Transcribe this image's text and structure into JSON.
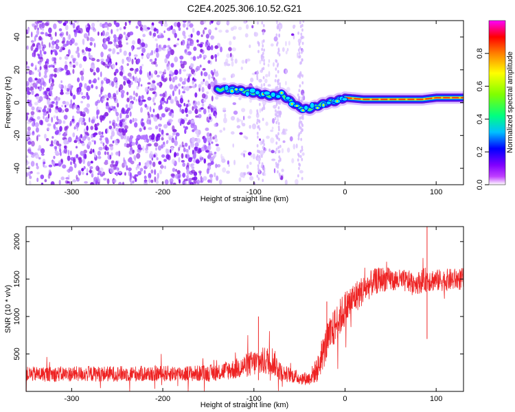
{
  "title": "C2E4.2025.306.10.52.G21",
  "chart_data": [
    {
      "type": "heatmap",
      "xlabel": "Height of straight line (km)",
      "ylabel": "Frequency (Hz)",
      "xlim": [
        -350,
        130
      ],
      "ylim": [
        -50,
        50
      ],
      "x_ticks": [
        -300,
        -200,
        -100,
        0,
        100
      ],
      "x_tick_labels": [
        "-300",
        "-200",
        "-100",
        "0",
        "100"
      ],
      "y_ticks": [
        -40,
        -20,
        0,
        20,
        40
      ],
      "y_tick_labels": [
        "-40",
        "-20",
        "0",
        "20",
        "40"
      ],
      "colorbar": {
        "label": "Normalized spectral amplitude",
        "range": [
          0,
          1
        ],
        "ticks": [
          0.0,
          0.2,
          0.4,
          0.6,
          0.8
        ],
        "tick_labels": [
          "0.0",
          "0.2",
          "0.4",
          "0.6",
          "0.8"
        ],
        "colormap": [
          "#ffffff",
          "#c040ff",
          "#8000ff",
          "#0000ff",
          "#00c0ff",
          "#00ff80",
          "#80ff00",
          "#ffff00",
          "#ff8000",
          "#ff0000",
          "#ff00ff"
        ]
      },
      "ridge": {
        "x": [
          -140,
          -120,
          -100,
          -80,
          -70,
          -60,
          -50,
          -40,
          -30,
          -20,
          -10,
          0,
          20,
          50,
          85,
          100,
          130
        ],
        "y": [
          8,
          8,
          6,
          4,
          5,
          1,
          -3,
          -4,
          -2,
          0,
          1,
          3,
          2,
          2,
          2,
          3,
          3
        ]
      },
      "noise_region_xmax": -45
    },
    {
      "type": "line",
      "xlabel": "Height of straight line (km)",
      "ylabel": "SNR (10 * v/v)",
      "xlim": [
        -350,
        130
      ],
      "ylim": [
        0,
        2200
      ],
      "x_ticks": [
        -300,
        -200,
        -100,
        0,
        100
      ],
      "x_tick_labels": [
        "-300",
        "-200",
        "-100",
        "0",
        "100"
      ],
      "y_ticks": [
        500,
        1000,
        1500,
        2000
      ],
      "y_tick_labels": [
        "500",
        "1000",
        "1500",
        "2000"
      ],
      "series": [
        {
          "name": "SNR",
          "color": "#ee2222",
          "envelope_x": [
            -350,
            -150,
            -120,
            -100,
            -80,
            -70,
            -60,
            -50,
            -40,
            -30,
            -20,
            -10,
            0,
            10,
            20,
            30,
            40,
            60,
            80,
            90,
            100,
            130
          ],
          "envelope_mean": [
            230,
            240,
            300,
            380,
            420,
            250,
            220,
            180,
            170,
            300,
            650,
            900,
            1100,
            1250,
            1350,
            1450,
            1500,
            1480,
            1450,
            1500,
            1480,
            1500
          ],
          "envelope_amp": [
            100,
            110,
            140,
            180,
            200,
            120,
            100,
            90,
            90,
            180,
            250,
            250,
            250,
            220,
            200,
            180,
            170,
            150,
            150,
            170,
            150,
            150
          ]
        }
      ]
    }
  ]
}
